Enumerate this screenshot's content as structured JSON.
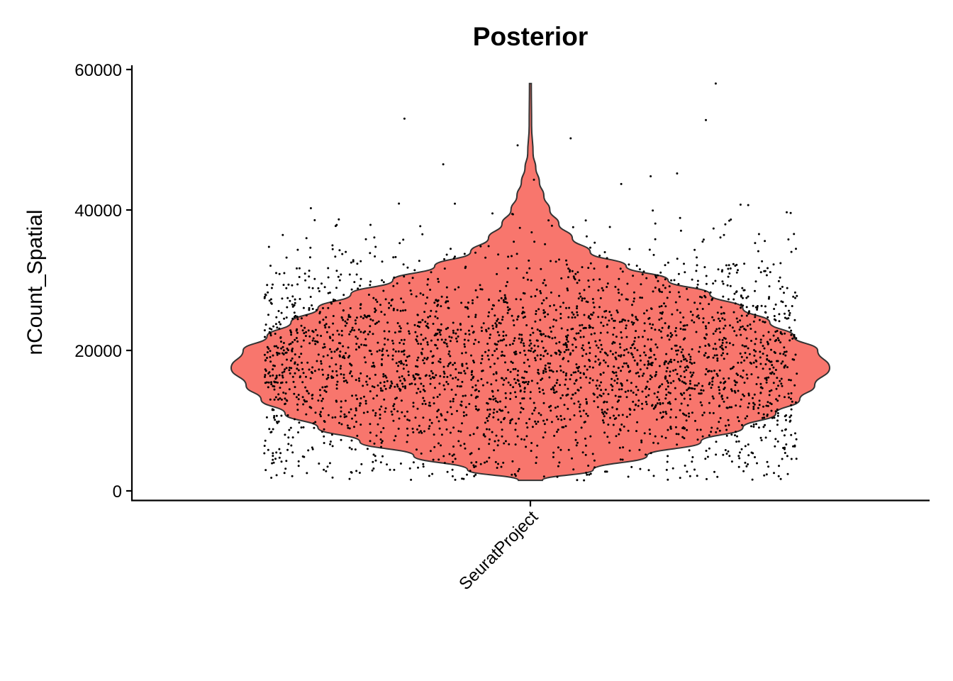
{
  "chart_data": {
    "type": "violin",
    "title": "Posterior",
    "xlabel": "",
    "ylabel": "nCount_Spatial",
    "categories": [
      "SeuratProject"
    ],
    "ylim": [
      0,
      60000
    ],
    "yticks": [
      0,
      20000,
      40000,
      60000
    ],
    "ytick_labels": [
      "0",
      "20000",
      "40000",
      "60000"
    ],
    "fill_color": "#F8766D",
    "outline_color": "#333333",
    "point_color": "#000000",
    "grid": false,
    "legend": "none",
    "violin": {
      "min": 1500,
      "max": 58000,
      "median": 18000,
      "density_profile": [
        {
          "y": 1500,
          "w": 0.04
        },
        {
          "y": 3000,
          "w": 0.21
        },
        {
          "y": 5000,
          "w": 0.39
        },
        {
          "y": 7000,
          "w": 0.57
        },
        {
          "y": 9000,
          "w": 0.71
        },
        {
          "y": 11000,
          "w": 0.82
        },
        {
          "y": 13000,
          "w": 0.9
        },
        {
          "y": 15000,
          "w": 0.95
        },
        {
          "y": 17500,
          "w": 1.0
        },
        {
          "y": 20000,
          "w": 0.96
        },
        {
          "y": 22000,
          "w": 0.88
        },
        {
          "y": 24000,
          "w": 0.8
        },
        {
          "y": 26000,
          "w": 0.71
        },
        {
          "y": 28000,
          "w": 0.6
        },
        {
          "y": 30000,
          "w": 0.46
        },
        {
          "y": 32000,
          "w": 0.32
        },
        {
          "y": 34000,
          "w": 0.2
        },
        {
          "y": 36000,
          "w": 0.14
        },
        {
          "y": 38000,
          "w": 0.095
        },
        {
          "y": 40000,
          "w": 0.065
        },
        {
          "y": 42000,
          "w": 0.045
        },
        {
          "y": 44000,
          "w": 0.03
        },
        {
          "y": 46000,
          "w": 0.018
        },
        {
          "y": 48000,
          "w": 0.009
        },
        {
          "y": 52000,
          "w": 0.004
        },
        {
          "y": 58000,
          "w": 0.003
        }
      ]
    },
    "n_points": 3000,
    "outlier_points": [
      {
        "y": 58000
      },
      {
        "y": 53000
      },
      {
        "y": 52800
      },
      {
        "y": 50200
      },
      {
        "y": 49200
      },
      {
        "y": 46500
      },
      {
        "y": 45200
      },
      {
        "y": 44800
      },
      {
        "y": 44300
      },
      {
        "y": 43700
      }
    ]
  }
}
